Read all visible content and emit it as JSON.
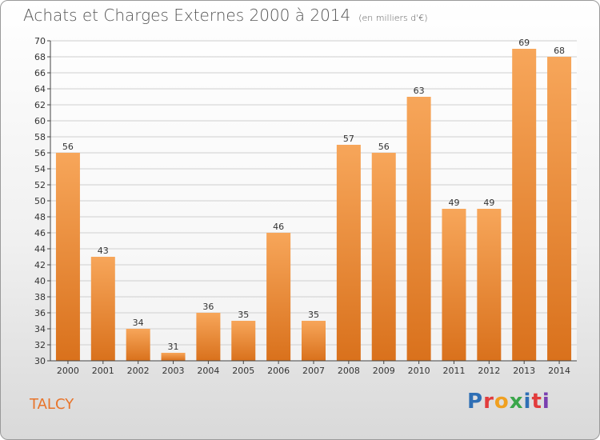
{
  "header": {
    "title": "Achats et Charges Externes 2000 à 2014",
    "subtitle": "(en milliers d'€)"
  },
  "footer": {
    "place": "TALCY",
    "logo": "Proxiti",
    "logo_colors": [
      "#2f6fb5",
      "#e23c3c",
      "#f0a020",
      "#3aa64a",
      "#2f6fb5",
      "#e23c3c",
      "#7a3fb0"
    ]
  },
  "colors": {
    "bar_light": "#f7a65a",
    "bar_dark": "#d9711c",
    "grid": "#cfcfcf",
    "axis": "#444444"
  },
  "chart_data": {
    "type": "bar",
    "title": "Achats et Charges Externes 2000 à 2014",
    "subtitle": "(en milliers d'€)",
    "categories": [
      "2000",
      "2001",
      "2002",
      "2003",
      "2004",
      "2005",
      "2006",
      "2007",
      "2008",
      "2009",
      "2010",
      "2011",
      "2012",
      "2013",
      "2014"
    ],
    "values": [
      56,
      43,
      34,
      31,
      36,
      35,
      46,
      35,
      57,
      56,
      63,
      49,
      49,
      69,
      68
    ],
    "ylim": [
      30,
      70
    ],
    "yticks": [
      30,
      32,
      34,
      36,
      38,
      40,
      42,
      44,
      46,
      48,
      50,
      52,
      54,
      56,
      58,
      60,
      62,
      64,
      66,
      68,
      70
    ],
    "grid": true,
    "data_labels": true
  }
}
